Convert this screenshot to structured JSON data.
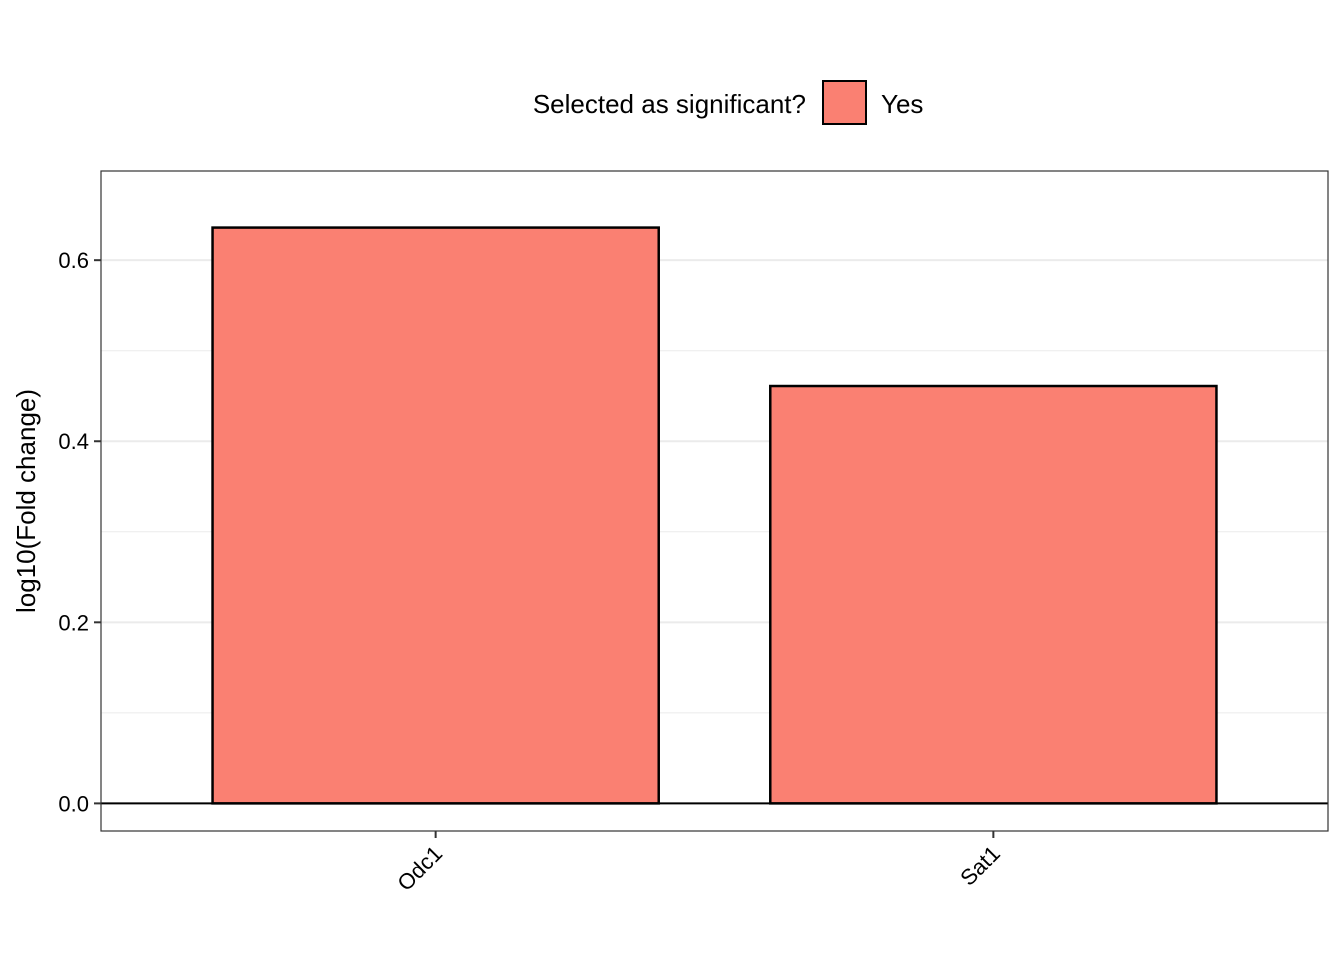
{
  "chart_data": {
    "type": "bar",
    "categories": [
      "Odc1",
      "Sat1"
    ],
    "values": [
      0.636,
      0.461
    ],
    "ylabel": "log10(Fold change)",
    "xlabel": "",
    "ylim": [
      -0.0305,
      0.6985
    ],
    "y_ticks": [
      0.0,
      0.2,
      0.4,
      0.6
    ],
    "y_tick_labels": [
      "0.0",
      "0.2",
      "0.4",
      "0.6"
    ],
    "grid": true,
    "legend": {
      "title": "Selected as significant?",
      "entries": [
        {
          "label": "Yes",
          "color": "#FA8072"
        }
      ],
      "position": "top"
    },
    "bar_color": "#FA8072",
    "reference_line": 0
  }
}
